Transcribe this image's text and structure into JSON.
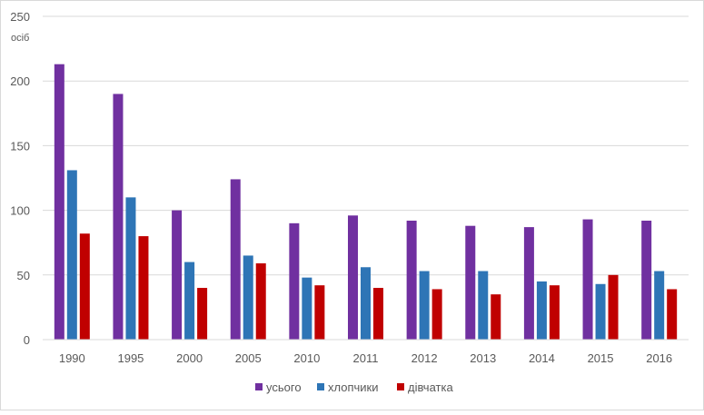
{
  "chart_data": {
    "type": "bar",
    "unit_label": "осіб",
    "categories": [
      "1990",
      "1995",
      "2000",
      "2005",
      "2010",
      "2011",
      "2012",
      "2013",
      "2014",
      "2015",
      "2016"
    ],
    "series": [
      {
        "name": "усього",
        "color": "#7030a0",
        "values": [
          213,
          190,
          100,
          124,
          90,
          96,
          92,
          88,
          87,
          93,
          92
        ]
      },
      {
        "name": "хлопчики",
        "color": "#2e75b6",
        "values": [
          131,
          110,
          60,
          65,
          48,
          56,
          53,
          53,
          45,
          43,
          53
        ]
      },
      {
        "name": "дівчатка",
        "color": "#c00000",
        "values": [
          82,
          80,
          40,
          59,
          42,
          40,
          39,
          35,
          42,
          50,
          39
        ]
      }
    ],
    "ylim": [
      0,
      250
    ],
    "yticks": [
      "0",
      "50",
      "100",
      "150",
      "200",
      "250"
    ],
    "grid": true,
    "legend_position": "bottom"
  }
}
